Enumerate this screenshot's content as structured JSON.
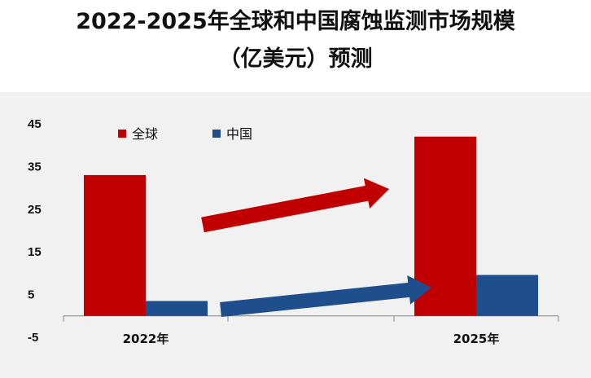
{
  "chart_data": {
    "type": "bar",
    "title_line1": "2022-2025年全球和中国腐蚀监测市场规模",
    "title_line2": "（亿美元）预测",
    "categories": [
      "2022年",
      "2025年"
    ],
    "series": [
      {
        "name": "全球",
        "color": "#c00000",
        "values": [
          33,
          42
        ]
      },
      {
        "name": "中国",
        "color": "#1f4e8c",
        "values": [
          3.5,
          9.6
        ]
      }
    ],
    "y_ticks": [
      45,
      35,
      25,
      15,
      5,
      -5
    ],
    "ylim": [
      -5,
      45
    ],
    "grid": false,
    "legend_position": "top-left",
    "annotations": [
      {
        "type": "arrow",
        "color": "#c00000",
        "meaning": "global growth trend"
      },
      {
        "type": "arrow",
        "color": "#1f4e8c",
        "meaning": "china growth trend"
      }
    ]
  }
}
